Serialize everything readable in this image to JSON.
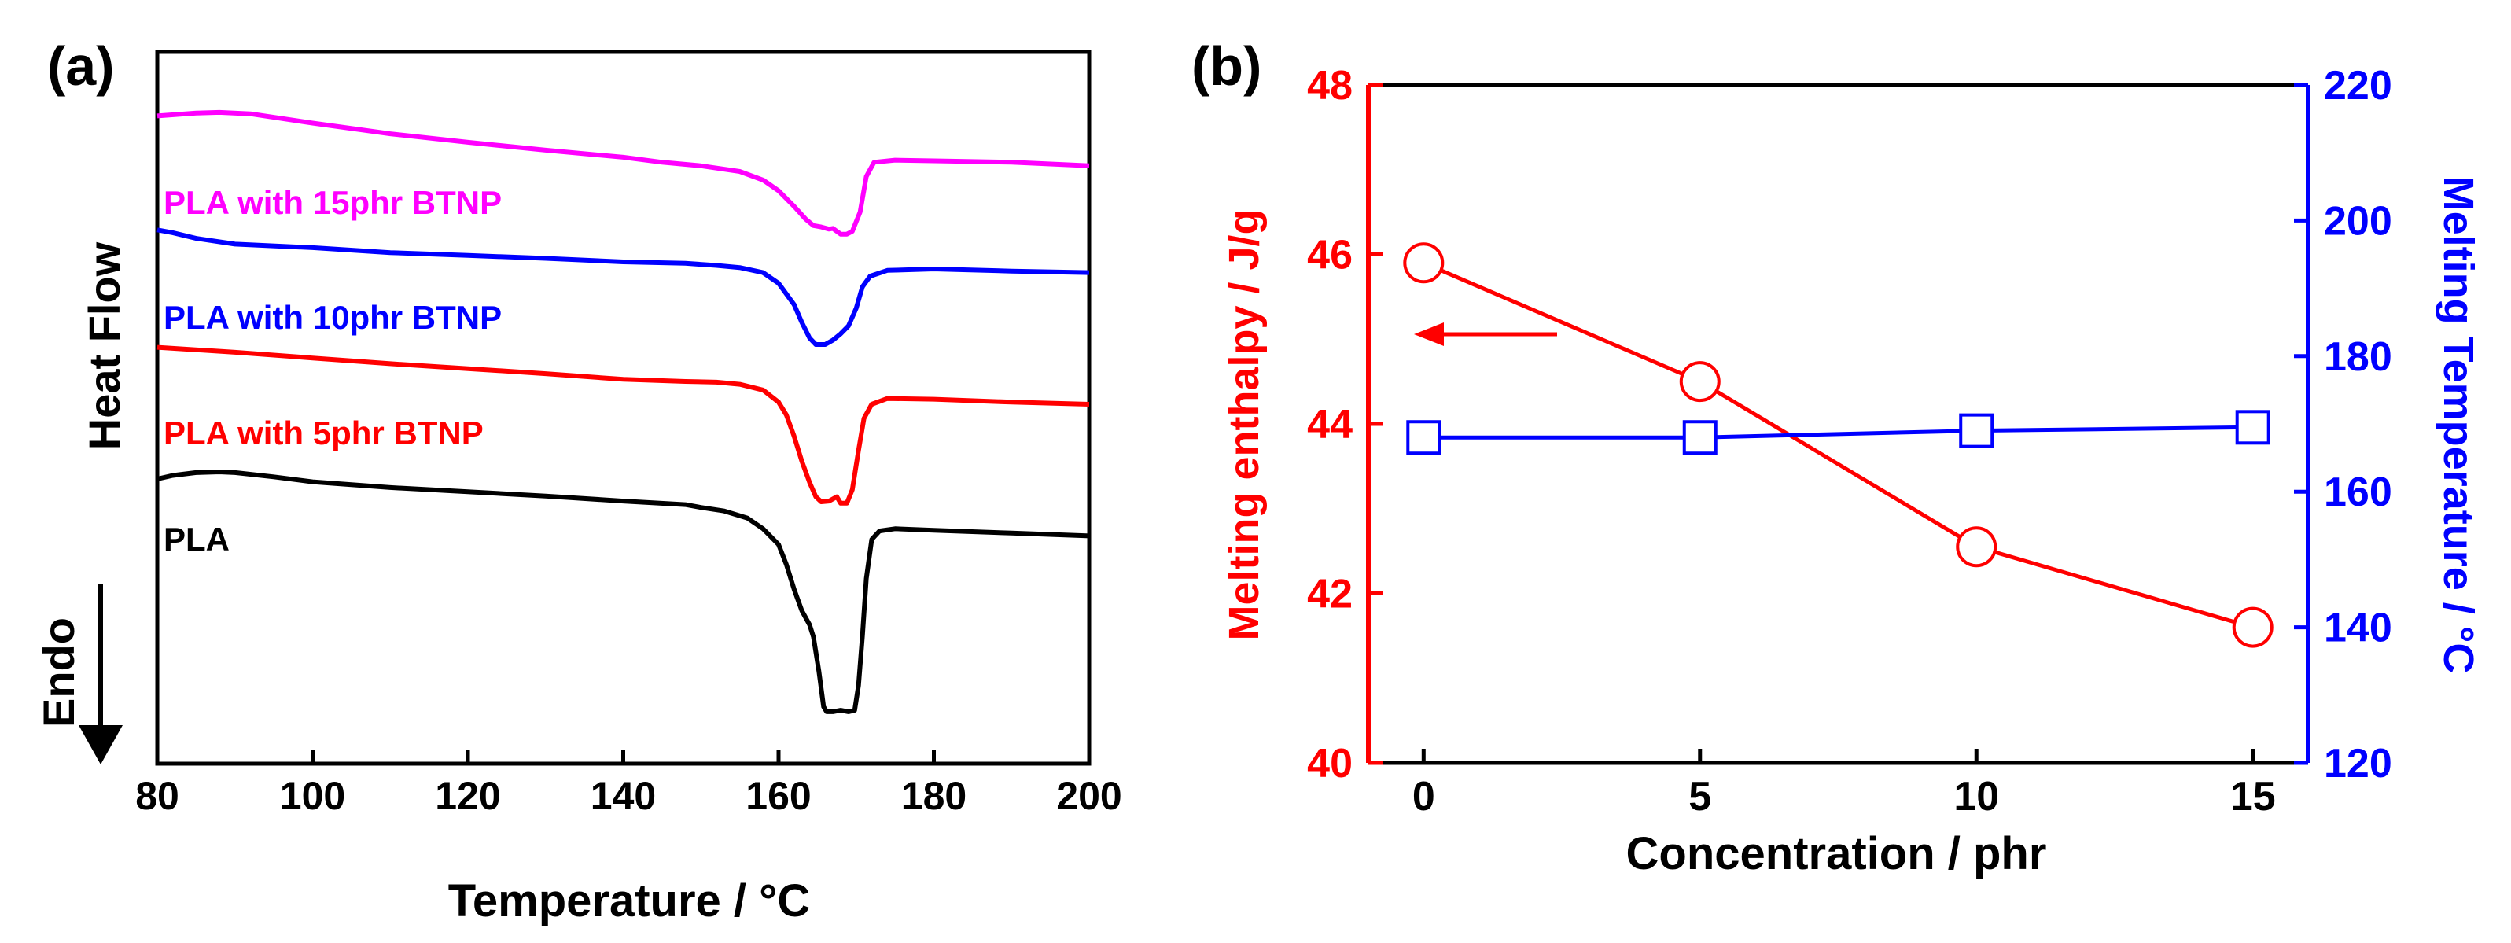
{
  "chart_data": [
    {
      "type": "line",
      "panel_label": "(a)",
      "title": "",
      "xlabel": "Temperature / °C",
      "ylabel": "Heat Flow",
      "endo_label": "Endo",
      "xlim": [
        80,
        200
      ],
      "x_ticks": [
        80,
        100,
        120,
        140,
        160,
        180,
        200
      ],
      "y_ticks_shown": false,
      "grid": false,
      "ylim": [
        0,
        100
      ],
      "curves": [
        {
          "name": "PLA with 15phr BTNP",
          "color": "#ff00ff",
          "points": [
            [
              80,
              91
            ],
            [
              85,
              91.4
            ],
            [
              88,
              91.5
            ],
            [
              92,
              91.3
            ],
            [
              100,
              90
            ],
            [
              110,
              88.5
            ],
            [
              120,
              87.3
            ],
            [
              130,
              86.2
            ],
            [
              140,
              85.2
            ],
            [
              145,
              84.5
            ],
            [
              150,
              84
            ],
            [
              155,
              83.2
            ],
            [
              158,
              82
            ],
            [
              160,
              80.5
            ],
            [
              162,
              78.3
            ],
            [
              163.5,
              76.5
            ],
            [
              164.5,
              75.6
            ],
            [
              165.5,
              75.4
            ],
            [
              166.5,
              75.1
            ],
            [
              167,
              75.2
            ],
            [
              168,
              74.4
            ],
            [
              168.8,
              74.4
            ],
            [
              169.5,
              74.8
            ],
            [
              170.5,
              77.5
            ],
            [
              171.3,
              82.5
            ],
            [
              172.3,
              84.5
            ],
            [
              175,
              84.8
            ],
            [
              180,
              84.7
            ],
            [
              190,
              84.5
            ],
            [
              200,
              84
            ]
          ]
        },
        {
          "name": "PLA with 10phr BTNP",
          "color": "#0000ff",
          "points": [
            [
              80,
              75
            ],
            [
              82,
              74.6
            ],
            [
              85,
              73.8
            ],
            [
              90,
              73
            ],
            [
              100,
              72.5
            ],
            [
              110,
              71.8
            ],
            [
              120,
              71.4
            ],
            [
              130,
              71
            ],
            [
              140,
              70.5
            ],
            [
              148,
              70.3
            ],
            [
              152,
              70
            ],
            [
              155,
              69.7
            ],
            [
              158,
              69
            ],
            [
              160,
              67.5
            ],
            [
              162,
              64.5
            ],
            [
              163,
              62
            ],
            [
              164,
              59.8
            ],
            [
              164.8,
              58.9
            ],
            [
              166,
              58.9
            ],
            [
              167,
              59.5
            ],
            [
              168,
              60.4
            ],
            [
              169,
              61.5
            ],
            [
              170,
              64
            ],
            [
              170.8,
              67
            ],
            [
              171.8,
              68.5
            ],
            [
              174,
              69.3
            ],
            [
              180,
              69.5
            ],
            [
              190,
              69.2
            ],
            [
              200,
              69
            ]
          ]
        },
        {
          "name": "PLA with 5phr BTNP",
          "color": "#ff0000",
          "points": [
            [
              80,
              58.5
            ],
            [
              90,
              57.8
            ],
            [
              100,
              57
            ],
            [
              110,
              56.2
            ],
            [
              120,
              55.5
            ],
            [
              130,
              54.8
            ],
            [
              140,
              54
            ],
            [
              148,
              53.7
            ],
            [
              152,
              53.6
            ],
            [
              155,
              53.3
            ],
            [
              158,
              52.5
            ],
            [
              160,
              50.8
            ],
            [
              161,
              49
            ],
            [
              162,
              46
            ],
            [
              163,
              42.5
            ],
            [
              164,
              39.5
            ],
            [
              164.8,
              37.5
            ],
            [
              165.5,
              36.8
            ],
            [
              166.5,
              36.9
            ],
            [
              167.5,
              37.5
            ],
            [
              168,
              36.6
            ],
            [
              168.8,
              36.6
            ],
            [
              169.5,
              38.5
            ],
            [
              170.3,
              44
            ],
            [
              171,
              48.5
            ],
            [
              172,
              50.5
            ],
            [
              174,
              51.3
            ],
            [
              180,
              51.2
            ],
            [
              190,
              50.8
            ],
            [
              200,
              50.5
            ]
          ]
        },
        {
          "name": "PLA",
          "color": "#000000",
          "points": [
            [
              80,
              40
            ],
            [
              82,
              40.5
            ],
            [
              85,
              40.9
            ],
            [
              88,
              41
            ],
            [
              90,
              40.9
            ],
            [
              95,
              40.3
            ],
            [
              100,
              39.6
            ],
            [
              110,
              38.8
            ],
            [
              120,
              38.2
            ],
            [
              130,
              37.6
            ],
            [
              140,
              36.9
            ],
            [
              148,
              36.4
            ],
            [
              150,
              36
            ],
            [
              153,
              35.5
            ],
            [
              156,
              34.5
            ],
            [
              158,
              33
            ],
            [
              160,
              30.8
            ],
            [
              161,
              28
            ],
            [
              162,
              24.5
            ],
            [
              163,
              21.5
            ],
            [
              164,
              19.5
            ],
            [
              164.5,
              17.8
            ],
            [
              165.2,
              13
            ],
            [
              165.8,
              8
            ],
            [
              166.2,
              7.3
            ],
            [
              167,
              7.3
            ],
            [
              168,
              7.5
            ],
            [
              169,
              7.3
            ],
            [
              169.8,
              7.5
            ],
            [
              170.3,
              11
            ],
            [
              170.8,
              18
            ],
            [
              171.3,
              26
            ],
            [
              172,
              31.5
            ],
            [
              173,
              32.7
            ],
            [
              175,
              33
            ],
            [
              180,
              32.8
            ],
            [
              190,
              32.4
            ],
            [
              200,
              32
            ]
          ]
        }
      ]
    },
    {
      "type": "line",
      "panel_label": "(b)",
      "title": "",
      "xlabel": "Concentration / phr",
      "ylabel_left": "Melting enthalpy / J/g",
      "ylabel_right": "Melting Temperature / °C",
      "categories": [
        0,
        5,
        10,
        15
      ],
      "x_ticks": [
        0,
        5,
        10,
        15
      ],
      "xlim": [
        -1,
        16
      ],
      "ylim_left": [
        40,
        48
      ],
      "y_ticks_left": [
        40,
        42,
        44,
        46,
        48
      ],
      "ylim_right": [
        120,
        220
      ],
      "y_ticks_right": [
        120,
        140,
        160,
        180,
        200,
        220
      ],
      "axis_colors": {
        "left": "#ff0000",
        "right": "#0000ff",
        "bottom": "#000000"
      },
      "grid": false,
      "annotation": "arrow pointing left toward the enthalpy axis",
      "series": [
        {
          "name": "Melting enthalpy",
          "axis": "left",
          "color": "#ff0000",
          "marker": "circle",
          "values": [
            45.9,
            44.5,
            42.55,
            41.6
          ]
        },
        {
          "name": "Melting Temperature",
          "axis": "right",
          "color": "#0000ff",
          "marker": "square",
          "values": [
            168,
            168,
            169,
            169.5
          ]
        }
      ]
    }
  ]
}
